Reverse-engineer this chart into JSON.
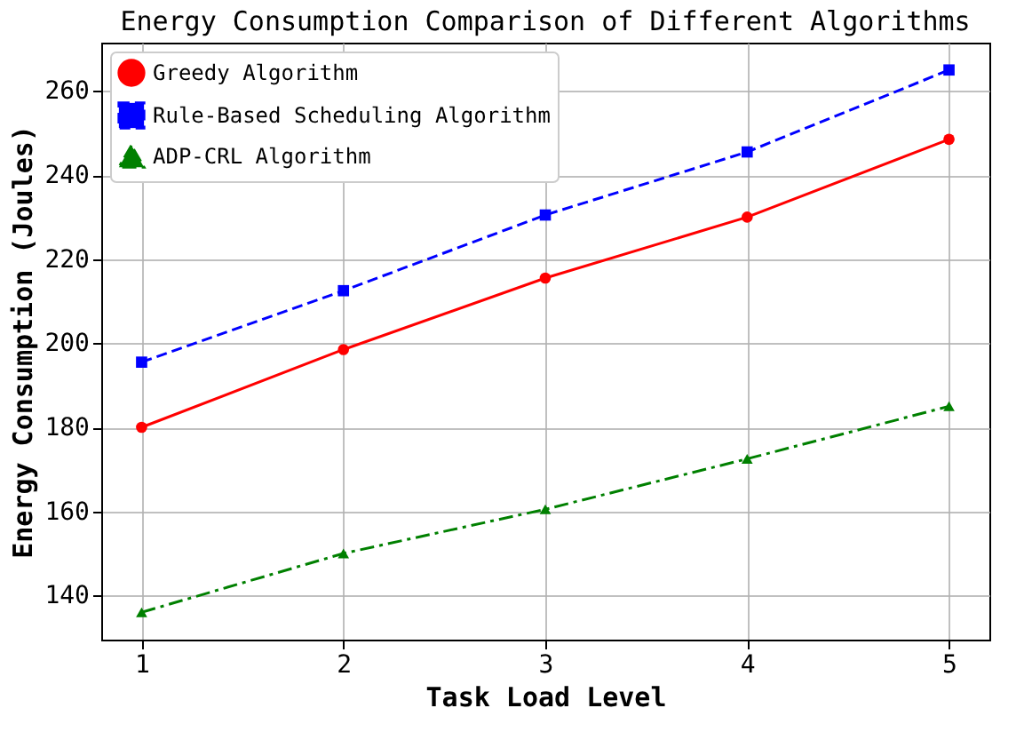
{
  "chart_data": {
    "type": "line",
    "title": "Energy Consumption Comparison of Different Algorithms",
    "xlabel": "Task Load Level",
    "ylabel": "Energy Consumption (Joules)",
    "x": [
      1,
      2,
      3,
      4,
      5
    ],
    "xlim": [
      0.8,
      5.2
    ],
    "xticks": [
      1,
      2,
      3,
      4,
      5
    ],
    "ylim": [
      129.5,
      271.5
    ],
    "yticks": [
      140,
      160,
      180,
      200,
      220,
      240,
      260
    ],
    "grid": true,
    "legend": "top left",
    "series": [
      {
        "name": "Greedy Algorithm",
        "color": "#ff0000",
        "marker": "circle",
        "line_style": "solid",
        "values": [
          180,
          198.5,
          215.5,
          230,
          248.5
        ]
      },
      {
        "name": "Rule-Based Scheduling Algorithm",
        "color": "#0000ff",
        "marker": "square",
        "line_style": "dashed",
        "values": [
          195.5,
          212.5,
          230.5,
          245.5,
          265
        ]
      },
      {
        "name": "ADP-CRL Algorithm",
        "color": "#008000",
        "marker": "triangle",
        "line_style": "dashdot",
        "values": [
          136,
          150,
          160.5,
          172.5,
          185
        ]
      }
    ]
  }
}
